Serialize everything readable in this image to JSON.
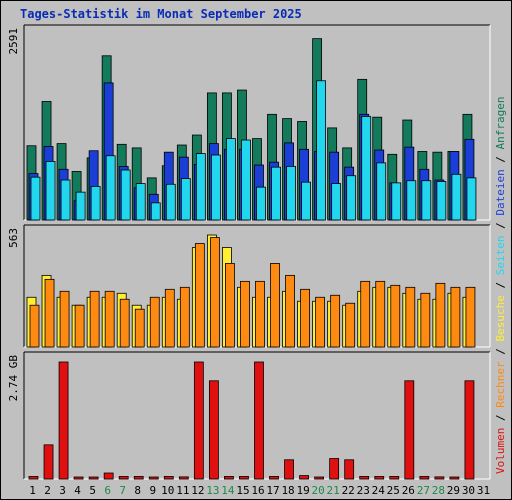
{
  "title": "Tages-Statistik im Monat September 2025",
  "colors": {
    "background": "#c0c0c0",
    "title": "#0a2bb5",
    "weekday_label": "#000000",
    "weekend_label": "#1e8a4a",
    "anfragen": "#137a5c",
    "dateien": "#1b3fd6",
    "seiten": "#22d6ee",
    "besuche": "#ffee33",
    "rechner": "#ff8a12",
    "volumen": "#e01010"
  },
  "legend": [
    {
      "label": "Volumen",
      "color": "#e01010"
    },
    {
      "label": "Rechner",
      "color": "#ff8a12"
    },
    {
      "label": "Besuche",
      "color": "#ffee33"
    },
    {
      "label": "Seiten",
      "color": "#22d6ee"
    },
    {
      "label": "Dateien",
      "color": "#1b3fd6"
    },
    {
      "label": "Anfragen",
      "color": "#137a5c"
    }
  ],
  "chart_data": [
    {
      "type": "bar",
      "ylabel": "2591",
      "ymax": 2591,
      "categories": [
        "1",
        "2",
        "3",
        "4",
        "5",
        "6",
        "7",
        "8",
        "9",
        "10",
        "11",
        "12",
        "13",
        "14",
        "15",
        "16",
        "17",
        "18",
        "19",
        "20",
        "21",
        "22",
        "23",
        "24",
        "25",
        "26",
        "27",
        "28",
        "29",
        "30",
        "31"
      ],
      "weekend": [
        "6",
        "7",
        "13",
        "14",
        "20",
        "21",
        "27",
        "28"
      ],
      "series": [
        {
          "name": "Anfragen",
          "values": [
            1040,
            1660,
            1070,
            680,
            870,
            2300,
            1060,
            1010,
            590,
            760,
            1050,
            1190,
            1780,
            1780,
            1820,
            1140,
            1480,
            1420,
            1380,
            2540,
            1290,
            1010,
            1970,
            1440,
            920,
            1400,
            960,
            950,
            960,
            1480,
            null
          ]
        },
        {
          "name": "Dateien",
          "values": [
            650,
            1030,
            710,
            270,
            970,
            1920,
            750,
            450,
            360,
            950,
            880,
            780,
            1070,
            990,
            990,
            770,
            810,
            1080,
            990,
            960,
            950,
            740,
            1480,
            980,
            520,
            1020,
            710,
            560,
            960,
            1130,
            null
          ]
        },
        {
          "name": "Seiten",
          "values": [
            600,
            820,
            560,
            390,
            470,
            900,
            700,
            510,
            240,
            500,
            580,
            930,
            910,
            1140,
            1120,
            460,
            740,
            750,
            530,
            1950,
            510,
            620,
            1450,
            800,
            520,
            550,
            550,
            540,
            640,
            590,
            null
          ]
        }
      ]
    },
    {
      "type": "bar",
      "ylabel": "563",
      "ymax": 563,
      "categories": [
        "1",
        "2",
        "3",
        "4",
        "5",
        "6",
        "7",
        "8",
        "9",
        "10",
        "11",
        "12",
        "13",
        "14",
        "15",
        "16",
        "17",
        "18",
        "19",
        "20",
        "21",
        "22",
        "23",
        "24",
        "25",
        "26",
        "27",
        "28",
        "29",
        "30",
        "31"
      ],
      "series": [
        {
          "name": "Besuche",
          "values": [
            250,
            360,
            250,
            210,
            250,
            250,
            270,
            210,
            210,
            250,
            240,
            500,
            563,
            500,
            300,
            250,
            250,
            280,
            230,
            230,
            230,
            210,
            280,
            300,
            300,
            270,
            240,
            240,
            270,
            250,
            null
          ]
        },
        {
          "name": "Rechner",
          "values": [
            210,
            340,
            280,
            210,
            280,
            280,
            240,
            190,
            250,
            290,
            300,
            520,
            550,
            420,
            330,
            330,
            420,
            360,
            290,
            250,
            260,
            220,
            330,
            330,
            310,
            300,
            270,
            320,
            300,
            300,
            null
          ]
        }
      ]
    },
    {
      "type": "bar",
      "ylabel": "2.74 GB",
      "ymax": 2.74,
      "unit": "GB",
      "categories": [
        "1",
        "2",
        "3",
        "4",
        "5",
        "6",
        "7",
        "8",
        "9",
        "10",
        "11",
        "12",
        "13",
        "14",
        "15",
        "16",
        "17",
        "18",
        "19",
        "20",
        "21",
        "22",
        "23",
        "24",
        "25",
        "26",
        "27",
        "28",
        "29",
        "30",
        "31"
      ],
      "series": [
        {
          "name": "Volumen",
          "values": [
            0.06,
            0.8,
            2.74,
            0.02,
            0.04,
            0.14,
            0.06,
            0.06,
            0.04,
            0.06,
            0.05,
            2.74,
            2.3,
            0.06,
            0.06,
            2.74,
            0.06,
            0.45,
            0.08,
            0.04,
            0.48,
            0.45,
            0.06,
            0.06,
            0.06,
            2.3,
            0.06,
            0.05,
            0.03,
            2.3,
            null
          ]
        }
      ]
    }
  ]
}
